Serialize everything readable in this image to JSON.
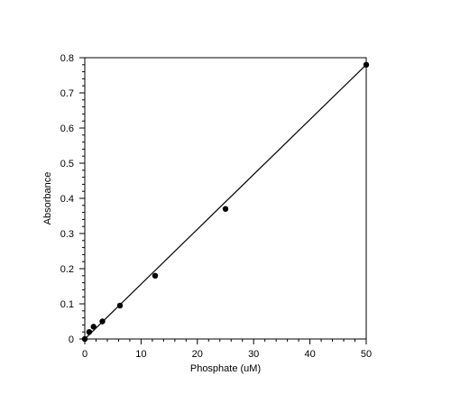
{
  "chart_data": {
    "type": "scatter",
    "title": "",
    "xlabel": "Phosphate (uM)",
    "ylabel": "Absorbance",
    "xlim": [
      0,
      50
    ],
    "ylim": [
      0,
      0.8
    ],
    "xticks": [
      0,
      10,
      20,
      30,
      40,
      50
    ],
    "yticks": [
      0,
      0.1,
      0.2,
      0.3,
      0.4,
      0.5,
      0.6,
      0.7,
      0.8
    ],
    "xtick_labels": [
      "0",
      "10",
      "20",
      "30",
      "40",
      "50"
    ],
    "ytick_labels": [
      "0",
      "0.1",
      "0.2",
      "0.3",
      "0.4",
      "0.5",
      "0.6",
      "0.7",
      "0.8"
    ],
    "grid": false,
    "series": [
      {
        "x": [
          0,
          0.78,
          1.56,
          3.125,
          6.25,
          12.5,
          25,
          50
        ],
        "y": [
          0,
          0.02,
          0.035,
          0.05,
          0.095,
          0.18,
          0.37,
          0.78
        ],
        "marker_color": "#000000"
      }
    ],
    "fit_line": {
      "x": [
        0,
        50
      ],
      "y": [
        0.0,
        0.78
      ],
      "color": "#000000"
    }
  }
}
